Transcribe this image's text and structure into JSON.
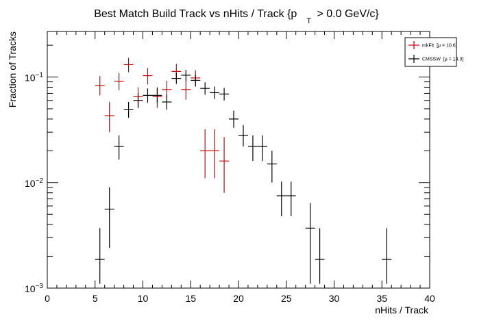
{
  "chart_data": {
    "type": "scatter",
    "title": "Best Match Build Track vs nHits / Track {p",
    "title_sub": "T",
    "title_tail": " > 0.0 GeV/c}",
    "xlabel": "nHits / Track",
    "ylabel": "Fraction of Tracks",
    "xlim": [
      0,
      40
    ],
    "ylim": [
      0.001,
      0.27
    ],
    "yscale": "log",
    "grid": false,
    "legend_position": "top-right",
    "x_ticks": [
      0,
      5,
      10,
      15,
      20,
      25,
      30,
      35,
      40
    ],
    "x_tick_labels": [
      "0",
      "5",
      "10",
      "15",
      "20",
      "25",
      "30",
      "35",
      "40"
    ],
    "y_ticks": [
      0.001,
      0.01,
      0.1
    ],
    "y_tick_base": [
      "10",
      "10",
      "10"
    ],
    "y_tick_exp": [
      "−3",
      "−2",
      "−1"
    ],
    "series": [
      {
        "name": "mkFit",
        "legend_stat": "[μ = 10.6]",
        "color": "#cc0000",
        "x": [
          5.5,
          6.5,
          7.5,
          8.5,
          9.5,
          10.5,
          11.5,
          12.5,
          13.5,
          14.5,
          15.5,
          16.5,
          17.5,
          18.5
        ],
        "y": [
          0.083,
          0.043,
          0.091,
          0.131,
          0.065,
          0.103,
          0.065,
          0.076,
          0.113,
          0.076,
          0.098,
          0.02,
          0.02,
          0.016
        ],
        "y_low": [
          0.067,
          0.03,
          0.075,
          0.111,
          0.051,
          0.085,
          0.051,
          0.061,
          0.094,
          0.061,
          0.081,
          0.011,
          0.011,
          0.008
        ],
        "y_high": [
          0.102,
          0.058,
          0.109,
          0.152,
          0.08,
          0.122,
          0.08,
          0.092,
          0.133,
          0.092,
          0.116,
          0.032,
          0.032,
          0.027
        ]
      },
      {
        "name": "CMSSW",
        "legend_stat": "[μ = 14.3]",
        "color": "#000000",
        "x": [
          5.5,
          6.5,
          7.5,
          8.5,
          9.5,
          10.5,
          11.5,
          12.5,
          13.5,
          14.5,
          15.5,
          16.5,
          17.5,
          18.5,
          19.5,
          20.5,
          21.5,
          22.5,
          23.5,
          24.5,
          25.5,
          27.5,
          28.5,
          35.5
        ],
        "y": [
          0.00187,
          0.0056,
          0.022,
          0.049,
          0.06,
          0.067,
          0.067,
          0.058,
          0.097,
          0.104,
          0.093,
          0.078,
          0.071,
          0.069,
          0.04,
          0.028,
          0.022,
          0.022,
          0.015,
          0.0075,
          0.0075,
          0.0037,
          0.00187,
          0.00187
        ],
        "y_low": [
          0.0011,
          0.0024,
          0.0165,
          0.041,
          0.051,
          0.057,
          0.057,
          0.049,
          0.086,
          0.092,
          0.082,
          0.068,
          0.062,
          0.06,
          0.033,
          0.022,
          0.016,
          0.016,
          0.01,
          0.0048,
          0.0048,
          0.0011,
          0.0011,
          0.0011
        ],
        "y_high": [
          0.0037,
          0.009,
          0.028,
          0.058,
          0.07,
          0.078,
          0.078,
          0.068,
          0.11,
          0.117,
          0.105,
          0.089,
          0.081,
          0.079,
          0.048,
          0.035,
          0.028,
          0.028,
          0.02,
          0.0102,
          0.0102,
          0.0064,
          0.0037,
          0.0037
        ]
      }
    ]
  }
}
